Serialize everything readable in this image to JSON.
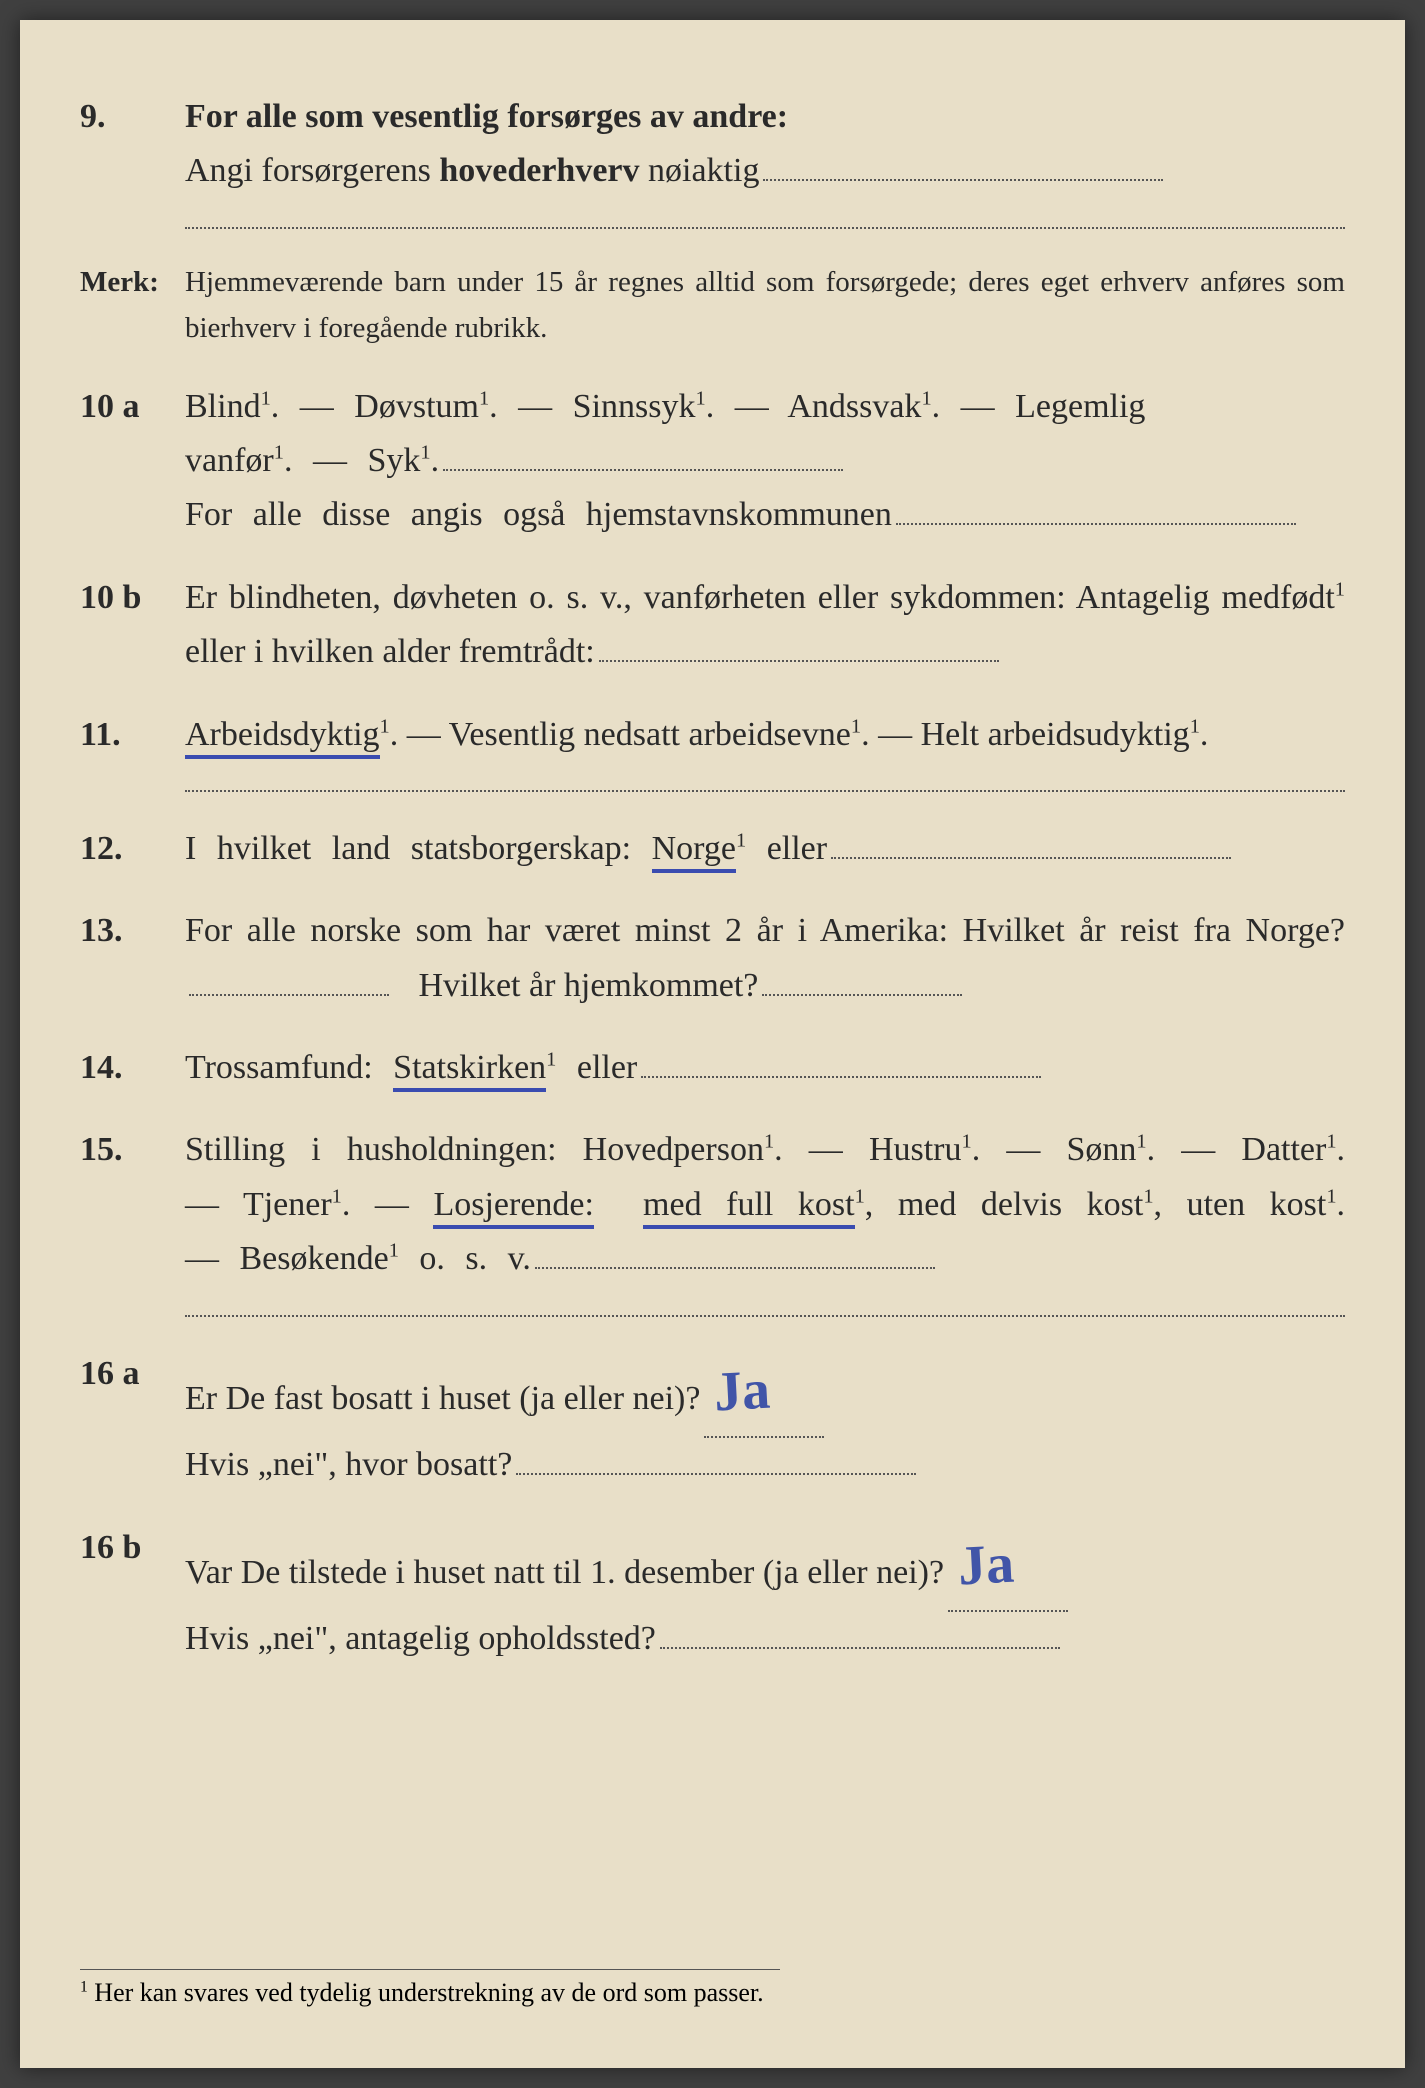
{
  "q9": {
    "num": "9.",
    "line1_a": "For alle som vesentlig forsørges av andre:",
    "line2_a": "Angi forsørgerens ",
    "line2_b": "hovederhverv",
    "line2_c": " nøiaktig"
  },
  "merk": {
    "label": "Merk:",
    "text": "Hjemmeværende barn under 15 år regnes alltid som forsørgede; deres eget erhverv anføres som bierhverv i foregående rubrikk."
  },
  "q10a": {
    "num": "10 a",
    "blind": "Blind",
    "dovstum": "Døvstum",
    "sinnssyk": "Sinnssyk",
    "andssvak": "Andssvak",
    "legemlig": "Legemlig",
    "vanfor": "vanfør",
    "syk": "Syk",
    "sub": "For alle disse angis også hjemstavnskommunen"
  },
  "q10b": {
    "num": "10 b",
    "text1": "Er blindheten, døvheten o. s. v., vanførheten eller sykdommen: Antagelig medfødt",
    "text2": " eller i hvilken alder fremtrådt:"
  },
  "q11": {
    "num": "11.",
    "opt1": "Arbeidsdyktig",
    "opt2": "Vesentlig nedsatt arbeidsevne",
    "opt3": "Helt arbeidsudyktig"
  },
  "q12": {
    "num": "12.",
    "text1": "I hvilket land statsborgerskap: ",
    "norge": "Norge",
    "eller": " eller"
  },
  "q13": {
    "num": "13.",
    "text1": "For alle norske som har været minst 2 år i Amerika: Hvilket år reist fra Norge?",
    "text2": "Hvilket år hjemkommet?"
  },
  "q14": {
    "num": "14.",
    "text1": "Trossamfund: ",
    "statskirken": "Statskirken",
    "eller": " eller"
  },
  "q15": {
    "num": "15.",
    "text1": "Stilling i husholdningen: Hovedperson",
    "hustru": "Hustru",
    "sonn": "Sønn",
    "datter": "Datter",
    "tjener": "Tjener",
    "losjerende": "Losjerende:",
    "fullkost": "med full kost",
    "delvis": "med delvis kost",
    "uten": "uten kost",
    "besok": "Besøkende",
    "osv": " o. s. v."
  },
  "q16a": {
    "num": "16 a",
    "text1": "Er De fast bosatt i huset (ja eller nei)?",
    "answer": "Ja",
    "text2": "Hvis „nei\", hvor bosatt?"
  },
  "q16b": {
    "num": "16 b",
    "text1": "Var De tilstede i huset natt til 1. desember (ja eller nei)?",
    "answer": "Ja",
    "text2": "Hvis „nei\", antagelig opholdssted?"
  },
  "footnote": {
    "sup": "1",
    "text": " Her kan svares ved tydelig understrekning av de ord som passer."
  },
  "sep": " — ",
  "sup1": "1",
  "period": "."
}
